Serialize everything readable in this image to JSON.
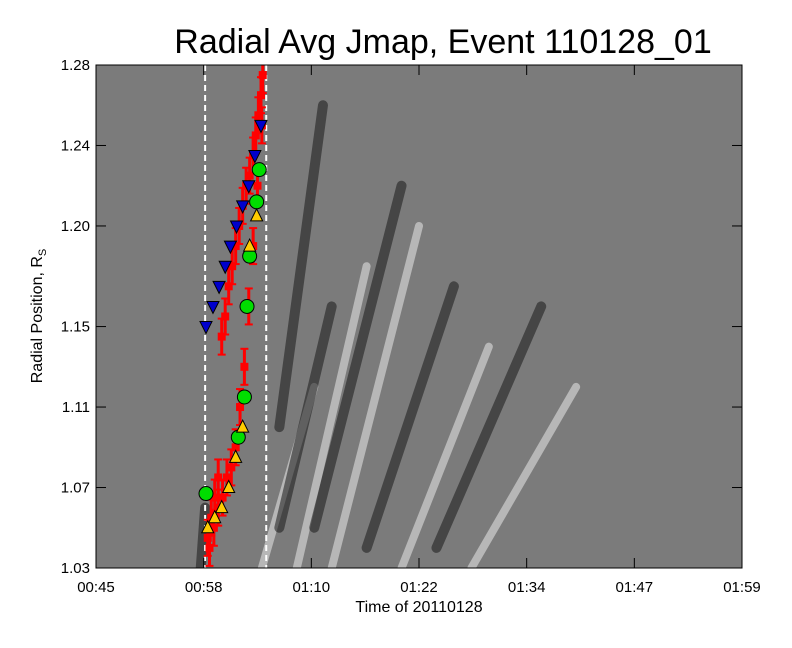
{
  "chart_data": {
    "type": "scatter",
    "title": "Radial Avg Jmap, Event 110128_01",
    "xlabel": "Time of 20110128",
    "ylabel_main": "Radial Position, R",
    "ylabel_sub": "S",
    "x_tick_labels": [
      "00:45",
      "00:58",
      "01:10",
      "01:22",
      "01:34",
      "01:47",
      "01:59"
    ],
    "y_tick_labels": [
      "1.03",
      "1.07",
      "1.11",
      "1.15",
      "1.20",
      "1.24",
      "1.28"
    ],
    "xlim_minutes": [
      45,
      119
    ],
    "ylim": [
      1.03,
      1.28
    ],
    "background": "grayscale running-difference J-map",
    "vertical_dashed_lines_minutes": [
      57.5,
      64.5
    ],
    "series": [
      {
        "marker": "square with error bars",
        "color": "#ff0000",
        "x_minutes": [
          57.8,
          58.2,
          58.6,
          59.0,
          59.4,
          59.8,
          60.2,
          60.6,
          61.0,
          61.4,
          61.8,
          62.2,
          62.6,
          63.0,
          63.3,
          63.6,
          63.9,
          64.1
        ],
        "y": [
          1.045,
          1.055,
          1.065,
          1.075,
          1.145,
          1.155,
          1.17,
          1.18,
          1.19,
          1.2,
          1.21,
          1.22,
          1.225,
          1.235,
          1.245,
          1.255,
          1.265,
          1.275
        ]
      },
      {
        "marker": "square with error bars",
        "color": "#ff0000",
        "x_minutes": [
          58.0,
          58.5,
          59.0,
          59.5,
          60.0,
          60.5,
          61.0,
          61.5,
          62.0,
          62.5,
          63.0,
          63.5,
          64.0
        ],
        "y": [
          1.04,
          1.05,
          1.06,
          1.065,
          1.075,
          1.08,
          1.09,
          1.11,
          1.13,
          1.16,
          1.19,
          1.22,
          1.25
        ]
      },
      {
        "marker": "triangle-down",
        "color": "#0000cc",
        "x_minutes": [
          57.6,
          58.4,
          59.1,
          59.8,
          60.4,
          61.1,
          61.8,
          62.5,
          63.2,
          63.9
        ],
        "y": [
          1.15,
          1.16,
          1.17,
          1.18,
          1.19,
          1.2,
          1.21,
          1.22,
          1.235,
          1.25
        ]
      },
      {
        "marker": "circle",
        "color": "#00dd00",
        "x_minutes": [
          57.6,
          61.3,
          62.0,
          62.3,
          62.6,
          63.4,
          63.7
        ],
        "y": [
          1.067,
          1.095,
          1.115,
          1.16,
          1.185,
          1.212,
          1.228
        ]
      },
      {
        "marker": "triangle-up",
        "color": "#ffcc00",
        "x_minutes": [
          57.8,
          58.6,
          59.4,
          60.2,
          61.0,
          61.8,
          62.6,
          63.4
        ],
        "y": [
          1.05,
          1.055,
          1.06,
          1.07,
          1.085,
          1.1,
          1.19,
          1.205
        ]
      }
    ]
  }
}
